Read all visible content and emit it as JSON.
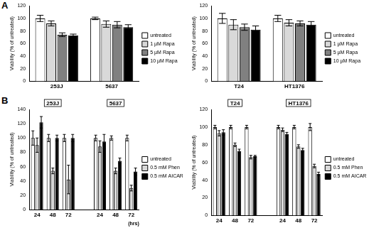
{
  "chart_data": [
    {
      "type": "bar",
      "panel": "A",
      "ylabel": "Viability (% of untreated)",
      "categories": [
        "253J",
        "5637"
      ],
      "series": [
        {
          "name": "untreated",
          "color": "#ffffff",
          "values": [
            100,
            100
          ],
          "errors": [
            5,
            2
          ]
        },
        {
          "name": "1 µM Rapa",
          "color": "#d9d9d9",
          "values": [
            92,
            91
          ],
          "errors": [
            4,
            5
          ]
        },
        {
          "name": "5 µM Rapa",
          "color": "#808080",
          "values": [
            74,
            90
          ],
          "errors": [
            3,
            5
          ]
        },
        {
          "name": "10 µM Rapa",
          "color": "#000000",
          "values": [
            73,
            86
          ],
          "errors": [
            2,
            4
          ]
        }
      ],
      "ylim": [
        0,
        120
      ],
      "yticks": [
        0,
        20,
        40,
        60,
        80,
        100,
        120
      ],
      "grid": false,
      "legend": "right"
    },
    {
      "type": "bar",
      "ylabel": "Viability (% of untreated)",
      "categories": [
        "T24",
        "HT1376"
      ],
      "series": [
        {
          "name": "untreated",
          "color": "#ffffff",
          "values": [
            100,
            100
          ],
          "errors": [
            8,
            5
          ]
        },
        {
          "name": "1 µM Rapa",
          "color": "#d9d9d9",
          "values": [
            90,
            93
          ],
          "errors": [
            8,
            5
          ]
        },
        {
          "name": "5 µM Rapa",
          "color": "#808080",
          "values": [
            86,
            92
          ],
          "errors": [
            5,
            4
          ]
        },
        {
          "name": "10 µM Rapa",
          "color": "#000000",
          "values": [
            82,
            90
          ],
          "errors": [
            6,
            5
          ]
        }
      ],
      "ylim": [
        0,
        120
      ],
      "yticks": [
        0,
        20,
        40,
        60,
        80,
        100,
        120
      ],
      "grid": false,
      "legend": "right"
    },
    {
      "type": "bar",
      "panel": "B",
      "ylabel": "Viability (% of untreated)",
      "xlabel": "(hrs)",
      "categories": [
        "24",
        "48",
        "72",
        null,
        "24",
        "48",
        "72"
      ],
      "annotations": [
        {
          "text": "253J",
          "x": 1
        },
        {
          "text": "5637",
          "x": 5
        }
      ],
      "series": [
        {
          "name": "untreated",
          "color": "#ffffff",
          "values": [
            100,
            100,
            100,
            null,
            100,
            100,
            100
          ],
          "errors": [
            10,
            5,
            5,
            null,
            4,
            3,
            4
          ]
        },
        {
          "name": "0.5 mM Phen",
          "color": "#d9d9d9",
          "values": [
            90,
            54,
            42,
            null,
            88,
            54,
            30
          ],
          "errors": [
            10,
            4,
            20,
            null,
            8,
            4,
            4
          ]
        },
        {
          "name": "0.5 mM AICAR",
          "color": "#000000",
          "values": [
            122,
            100,
            100,
            null,
            95,
            68,
            53
          ],
          "errors": [
            8,
            4,
            5,
            null,
            10,
            4,
            5
          ]
        }
      ],
      "ylim": [
        0,
        140
      ],
      "yticks": [
        0,
        20,
        40,
        60,
        80,
        100,
        120,
        140
      ],
      "grid": false,
      "legend": "right"
    },
    {
      "type": "bar",
      "ylabel": "Viability (% of untreated)",
      "categories": [
        "24",
        "48",
        "72",
        null,
        "24",
        "48",
        "72"
      ],
      "annotations": [
        {
          "text": "T24",
          "x": 1
        },
        {
          "text": "HT1376",
          "x": 5
        }
      ],
      "series": [
        {
          "name": "untreated",
          "color": "#ffffff",
          "values": [
            100,
            100,
            100,
            null,
            100,
            100,
            100
          ],
          "errors": [
            2,
            2,
            2,
            null,
            2,
            2,
            4
          ]
        },
        {
          "name": "0.5 mM Phen",
          "color": "#d9d9d9",
          "values": [
            93,
            80,
            66,
            null,
            97,
            78,
            56
          ],
          "errors": [
            3,
            2,
            2,
            null,
            2,
            2,
            2
          ]
        },
        {
          "name": "0.5 mM AICAR",
          "color": "#000000",
          "values": [
            94,
            73,
            67,
            null,
            92,
            74,
            47
          ],
          "errors": [
            3,
            2,
            1,
            null,
            2,
            2,
            2
          ]
        }
      ],
      "ylim": [
        0,
        120
      ],
      "yticks": [
        0,
        20,
        40,
        60,
        80,
        100,
        120
      ],
      "grid": false,
      "legend": "right"
    }
  ]
}
